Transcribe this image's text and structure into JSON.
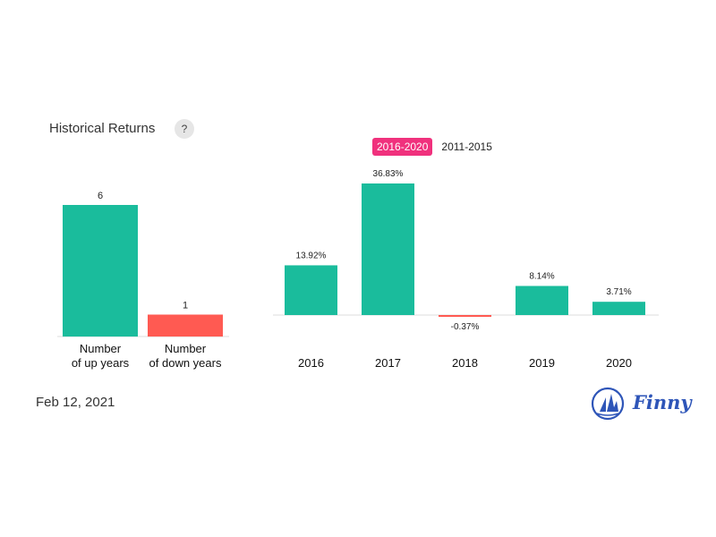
{
  "header": {
    "title": "Historical Returns",
    "help_label": "?"
  },
  "tabs": [
    {
      "label": "2016-2020",
      "active": true
    },
    {
      "label": "2011-2015",
      "active": false
    }
  ],
  "chart_data": [
    {
      "type": "bar",
      "categories": [
        "Number of up years",
        "Number of down years"
      ],
      "category_lines": [
        [
          "Number",
          "of up years"
        ],
        [
          "Number",
          "of down years"
        ]
      ],
      "values": [
        6,
        1
      ],
      "data_labels": [
        "6",
        "1"
      ],
      "colors": [
        "#1abc9c",
        "#ff5a52"
      ],
      "title": "",
      "xlabel": "",
      "ylabel": "",
      "grid": false
    },
    {
      "type": "bar",
      "categories": [
        "2016",
        "2017",
        "2018",
        "2019",
        "2020"
      ],
      "values": [
        13.92,
        36.83,
        -0.37,
        8.14,
        3.71
      ],
      "data_labels": [
        "13.92%",
        "36.83%",
        "-0.37%",
        "8.14%",
        "3.71%"
      ],
      "positive_color": "#1abc9c",
      "negative_color": "#ff5a52",
      "title": "",
      "xlabel": "",
      "ylabel": "",
      "grid": false
    }
  ],
  "footer": {
    "date": "Feb 12, 2021",
    "brand": "Finny",
    "brand_color": "#2e55b8"
  }
}
